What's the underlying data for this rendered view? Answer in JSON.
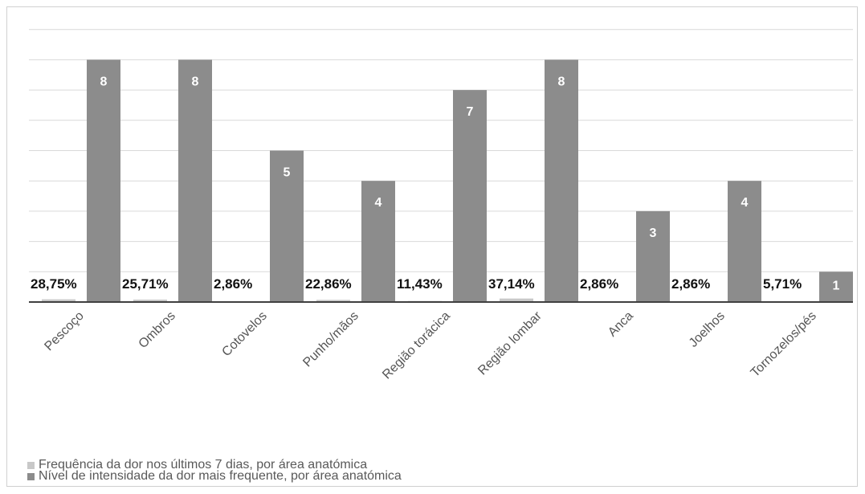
{
  "chart_data": {
    "type": "bar",
    "categories": [
      "Pescoço",
      "Ombros",
      "Cotovelos",
      "Punho/mãos",
      "Região torácica",
      "Região lombar",
      "Anca",
      "Joelhos",
      "Tornozelos/pés"
    ],
    "series": [
      {
        "name": "Frequência da dor nos últimos 7 dias, por área anatómica",
        "values": [
          0.2875,
          0.2571,
          0.0286,
          0.2286,
          0.1143,
          0.3714,
          0.0286,
          0.0286,
          0.0571
        ],
        "labels": [
          "28,75%",
          "25,71%",
          "2,86%",
          "22,86%",
          "11,43%",
          "37,14%",
          "2,86%",
          "2,86%",
          "5,71%"
        ],
        "color": "#c8c8c8"
      },
      {
        "name": "Nível de intensidade da dor mais frequente, por área anatómica",
        "values": [
          8,
          8,
          5,
          4,
          7,
          8,
          3,
          4,
          1
        ],
        "labels": [
          "8",
          "8",
          "5",
          "4",
          "7",
          "8",
          "3",
          "4",
          "1"
        ],
        "color": "#8c8c8c"
      }
    ],
    "ylim": [
      0,
      9
    ],
    "grid": true,
    "legend_position": "bottom-left"
  }
}
